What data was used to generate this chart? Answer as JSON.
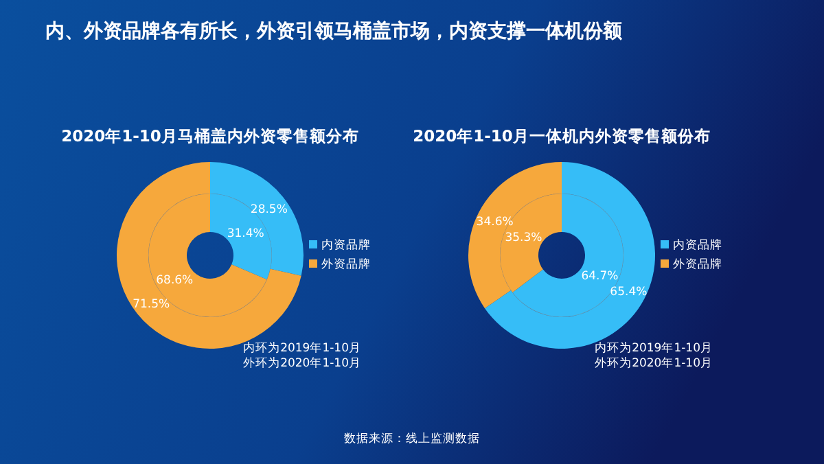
{
  "chart_data": [
    {
      "type": "donut",
      "title": "2020年1-10月马桶盖内外资零售额分布",
      "categories": [
        "内资品牌",
        "外资品牌"
      ],
      "colors": [
        "#36bdf7",
        "#f6a83c"
      ],
      "legend": "right",
      "series": [
        {
          "values": [
            31.4,
            68.6
          ],
          "value_labels": [
            "31.4%",
            "68.6%"
          ]
        },
        {
          "values": [
            28.5,
            71.5
          ],
          "value_labels": [
            "28.5%",
            "71.5%"
          ]
        }
      ],
      "annotations": [
        "内环为2019年1-10月",
        "外环为2020年1-10月",
        "内、外资品牌各有所长，外资引领马桶盖市场，内资支撑一体机份额"
      ]
    },
    {
      "type": "donut",
      "title": "2020年1-10月一体机内外资零售额份布",
      "categories": [
        "内资品牌",
        "外资品牌"
      ],
      "colors": [
        "#36bdf7",
        "#f6a83c"
      ],
      "legend": "right",
      "series": [
        {
          "values": [
            64.7,
            35.3
          ],
          "value_labels": [
            "64.7%",
            "35.3%"
          ]
        },
        {
          "values": [
            65.4,
            34.6
          ],
          "value_labels": [
            "65.4%",
            "34.6%"
          ]
        }
      ],
      "annotations": [
        "内环为2019年1-10月",
        "外环为2020年1-10月",
        "数据来源：线上监测数据"
      ]
    }
  ]
}
